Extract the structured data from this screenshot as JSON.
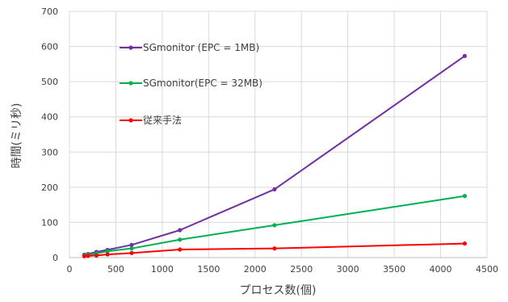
{
  "chart_data": {
    "type": "line",
    "xlabel": "プロセス数(個)",
    "ylabel": "時間(ミリ秒)",
    "xlim": [
      0,
      4500
    ],
    "ylim": [
      0,
      700
    ],
    "x_ticks": [
      0,
      500,
      1000,
      1500,
      2000,
      2500,
      3000,
      3500,
      4000,
      4500
    ],
    "y_ticks": [
      0,
      100,
      200,
      300,
      400,
      500,
      600,
      700
    ],
    "grid": true,
    "legend_position": "top-left, inside plot",
    "series": [
      {
        "name": "SGmonitor (EPC = 1MB)",
        "color": "#7030a0",
        "x": [
          160,
          200,
          290,
          410,
          670,
          1190,
          2210,
          4260
        ],
        "y": [
          8,
          10,
          16,
          22,
          36,
          78,
          194,
          573
        ]
      },
      {
        "name": "SGmonitor(EPC = 32MB)",
        "color": "#00b050",
        "x": [
          160,
          200,
          290,
          410,
          670,
          1190,
          2210,
          4260
        ],
        "y": [
          6,
          8,
          12,
          18,
          26,
          51,
          92,
          175
        ]
      },
      {
        "name": "従来手法",
        "color": "#ff0000",
        "x": [
          160,
          200,
          290,
          410,
          670,
          1190,
          2210,
          4260
        ],
        "y": [
          4,
          5,
          6,
          9,
          13,
          23,
          26,
          40
        ]
      }
    ]
  }
}
